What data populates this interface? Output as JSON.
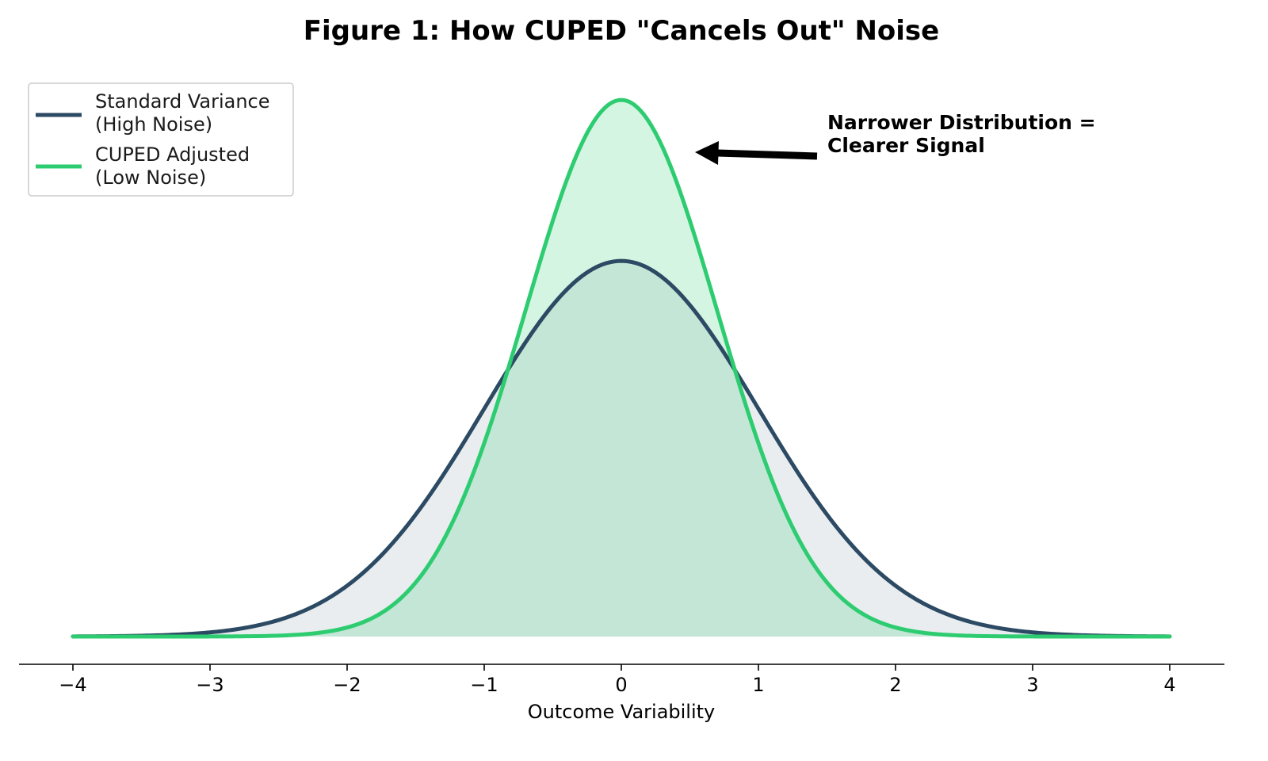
{
  "chart_data": {
    "type": "area",
    "title": "Figure 1: How CUPED \"Cancels Out\" Noise",
    "xlabel": "Outcome Variability",
    "ylabel": "",
    "xlim": [
      -4,
      4
    ],
    "ylim": [
      0,
      0.83
    ],
    "x_ticks": [
      -4,
      -3,
      -2,
      -1,
      0,
      1,
      2,
      3,
      4
    ],
    "x_tick_labels": [
      "−4",
      "−3",
      "−2",
      "−1",
      "0",
      "1",
      "2",
      "3",
      "4"
    ],
    "y_ticks_visible": false,
    "grid": false,
    "legend_position": "top-left",
    "series": [
      {
        "name": "Standard Variance\n(High Noise)",
        "legend_lines": [
          "Standard Variance",
          "(High Noise)"
        ],
        "distribution": "normal",
        "mean": 0,
        "std": 1.0,
        "peak_density": 0.399,
        "color": "#2c4a63",
        "fill_color": "#2c4a63",
        "fill_opacity": 0.1
      },
      {
        "name": "CUPED Adjusted\n(Low Noise)",
        "legend_lines": [
          "CUPED Adjusted",
          "(Low Noise)"
        ],
        "distribution": "normal",
        "mean": 0,
        "std": 0.7,
        "peak_density": 0.57,
        "color": "#2ecc71",
        "fill_color": "#2ecc71",
        "fill_opacity": 0.2
      }
    ],
    "annotation": {
      "text_lines": [
        "Narrower Distribution =",
        "Clearer Signal"
      ],
      "arrow_target": {
        "x": 0.55,
        "y": 0.5
      },
      "text_anchor": {
        "x": 1.5,
        "y": 0.5
      }
    }
  }
}
